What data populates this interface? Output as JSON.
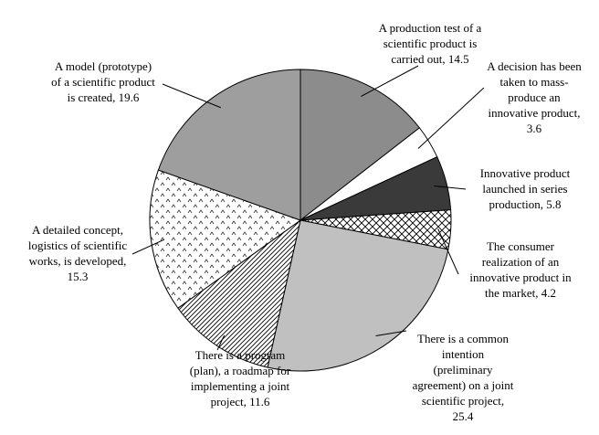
{
  "chart_data": {
    "type": "pie",
    "title": "",
    "slices": [
      {
        "label": "A production test of a\nscientific product is\ncarried out, 14.5",
        "value": 14.5,
        "fill": "#8c8c8c",
        "pattern": "solid"
      },
      {
        "label": "A decision has been\ntaken to mass-\nproduce an\ninnovative product,\n3.6",
        "value": 3.6,
        "fill": "#ffffff",
        "pattern": "solid"
      },
      {
        "label": "Innovative product\nlaunched in series\nproduction, 5.8",
        "value": 5.8,
        "fill": "#3a3a3a",
        "pattern": "solid"
      },
      {
        "label": "The consumer\nrealization of an\ninnovative product in\nthe market, 4.2",
        "value": 4.2,
        "fill": "#ffffff",
        "pattern": "crosshatch"
      },
      {
        "label": "There is a common\nintention\n(preliminary\nagreement) on a joint\nscientific project,\n25.4",
        "value": 25.4,
        "fill": "#c0c0c0",
        "pattern": "solid"
      },
      {
        "label": "There is a program\n(plan), a roadmap for\nimplementing a joint\nproject, 11.6",
        "value": 11.6,
        "fill": "#ffffff",
        "pattern": "diagonal"
      },
      {
        "label": "A detailed concept,\nlogistics of scientific\nworks, is developed,\n15.3",
        "value": 15.3,
        "fill": "#ffffff",
        "pattern": "dots"
      },
      {
        "label": "A model (prototype)\nof a scientific product\nis created, 19.6",
        "value": 19.6,
        "fill": "#9e9e9e",
        "pattern": "solid"
      }
    ],
    "legend": "none"
  }
}
